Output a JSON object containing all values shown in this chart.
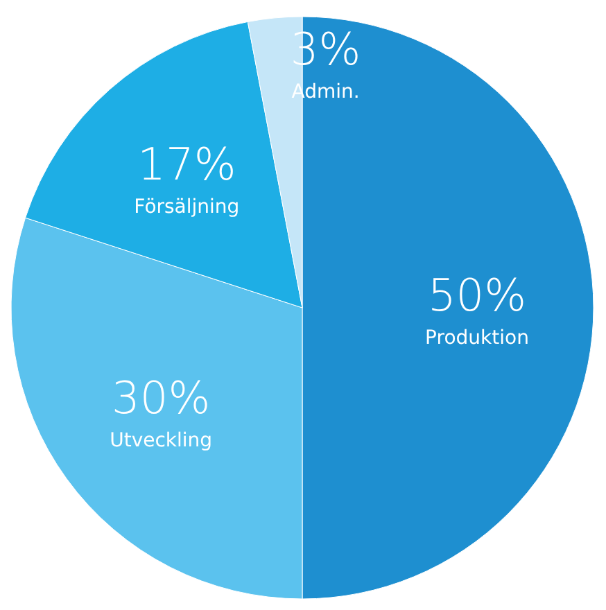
{
  "chart_data": {
    "type": "pie",
    "categories": [
      "Produktion",
      "Utveckling",
      "Försäljning",
      "Admin."
    ],
    "values": [
      50,
      30,
      17,
      3
    ],
    "colors": [
      "#1e8fd0",
      "#5bc2ee",
      "#1eaee5",
      "#c5e6f8"
    ],
    "value_labels": [
      "50%",
      "30%",
      "17%",
      "3%"
    ]
  }
}
